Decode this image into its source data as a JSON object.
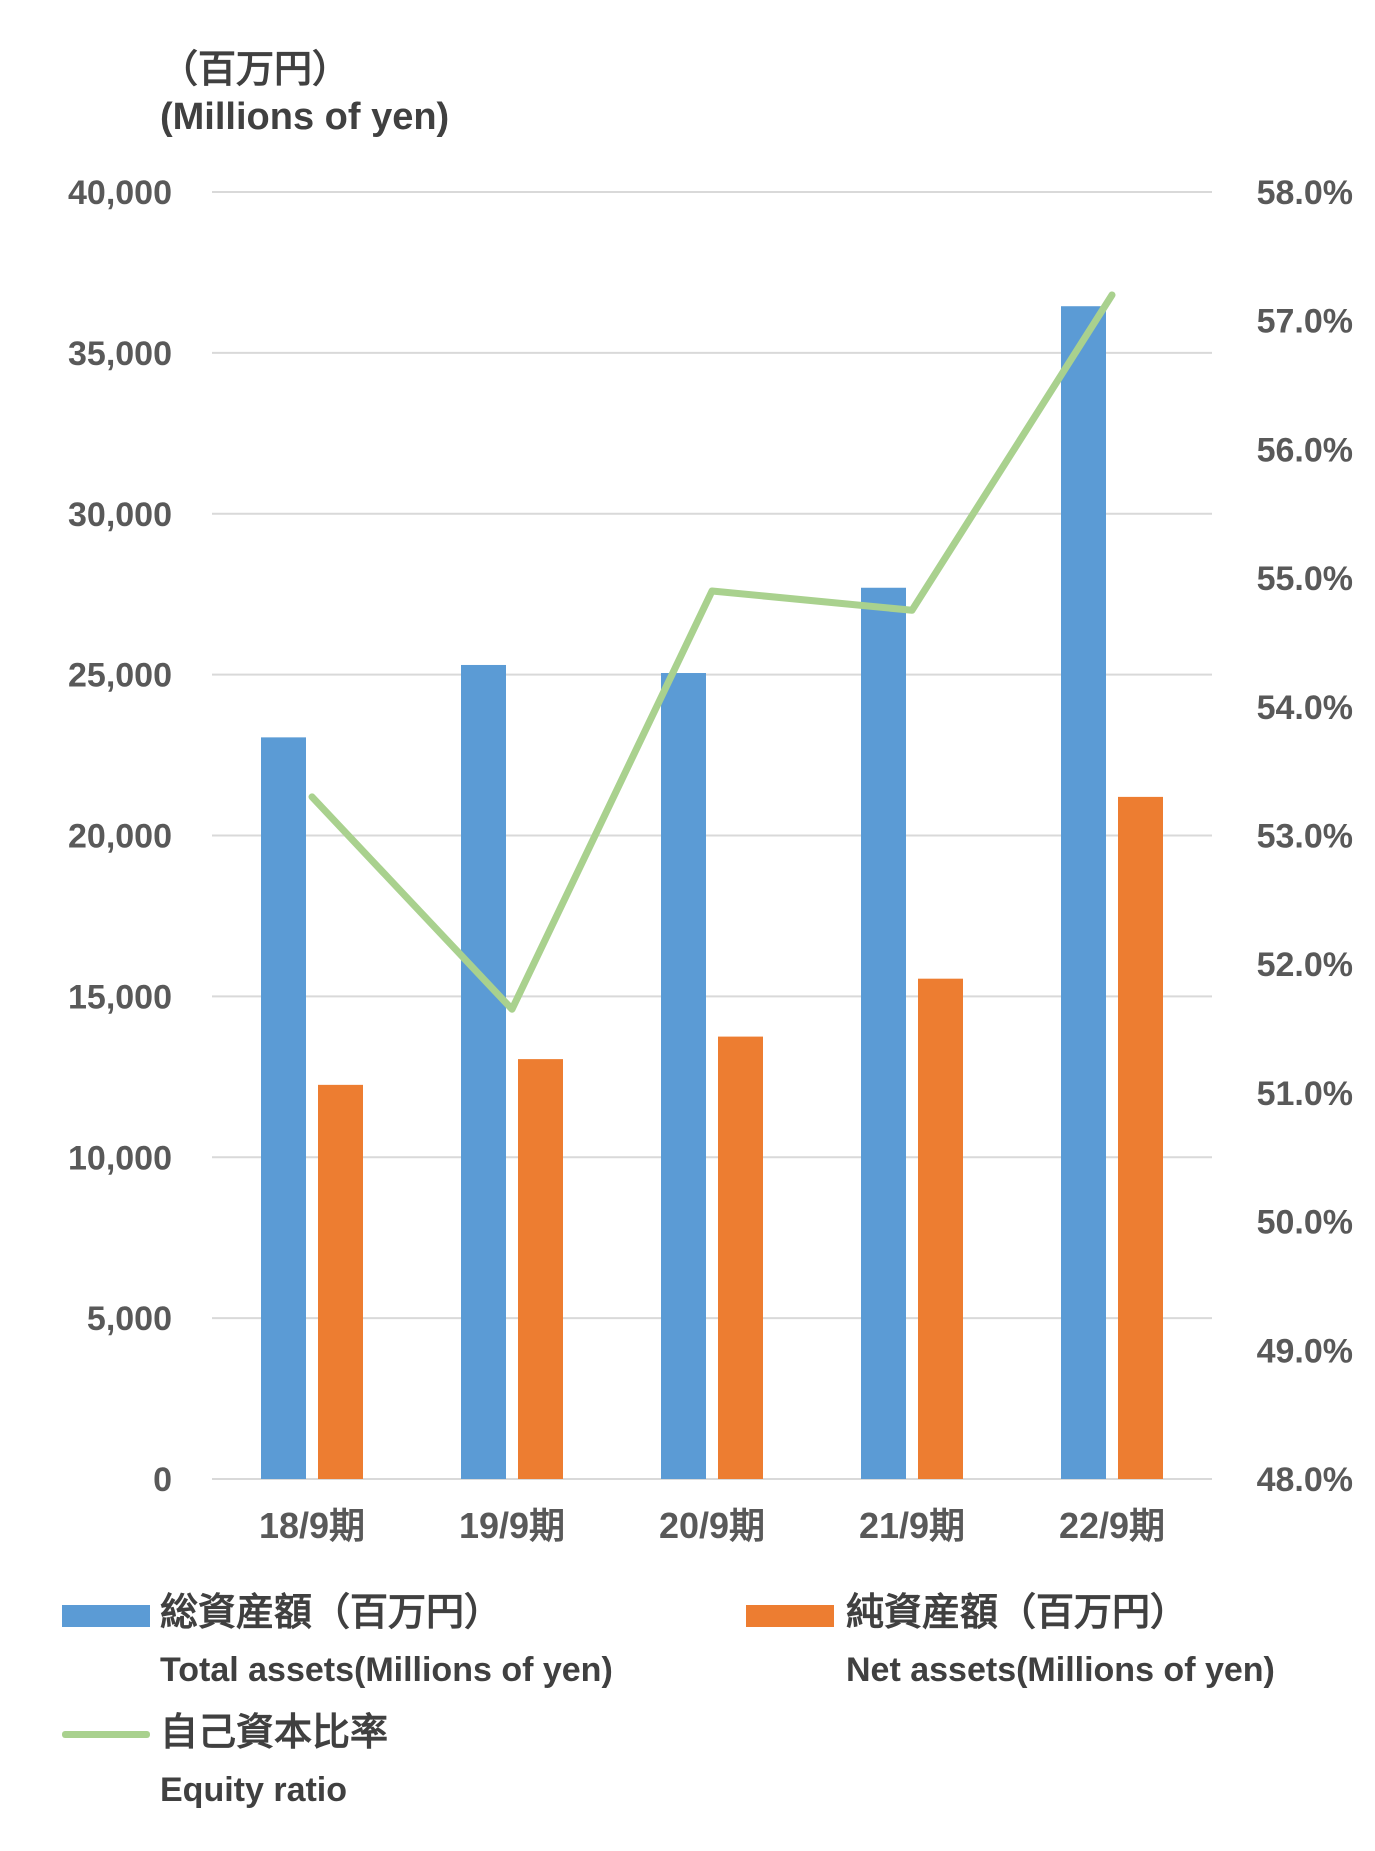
{
  "unit_label": {
    "jp": "（百万円）",
    "en": "(Millions of yen)"
  },
  "legend": {
    "total_assets": {
      "jp": "総資産額（百万円）",
      "en": "Total assets(Millions of yen)",
      "color": "#5B9BD5"
    },
    "net_assets": {
      "jp": "純資産額（百万円）",
      "en": "Net assets(Millions of yen)",
      "color": "#ED7D31"
    },
    "equity_ratio": {
      "jp": "自己資本比率",
      "en": "Equity ratio",
      "color": "#A9D18E"
    }
  },
  "chart_data": {
    "type": "bar",
    "categories": [
      "18/9期",
      "19/9期",
      "20/9期",
      "21/9期",
      "22/9期"
    ],
    "series": [
      {
        "name": "総資産額（百万円） Total assets(Millions of yen)",
        "type": "bar",
        "axis": "left",
        "color": "#5B9BD5",
        "values": [
          23050,
          25300,
          25050,
          27700,
          36450
        ]
      },
      {
        "name": "純資産額（百万円） Net assets(Millions of yen)",
        "type": "bar",
        "axis": "left",
        "color": "#ED7D31",
        "values": [
          12250,
          13050,
          13750,
          15550,
          21200
        ]
      },
      {
        "name": "自己資本比率 Equity ratio",
        "type": "line",
        "axis": "right",
        "color": "#A9D18E",
        "values": [
          53.3,
          51.65,
          54.9,
          54.75,
          57.2
        ]
      }
    ],
    "left_axis": {
      "min": 0,
      "max": 40000,
      "step": 5000,
      "tick_labels": [
        "0",
        "5,000",
        "10,000",
        "15,000",
        "20,000",
        "25,000",
        "30,000",
        "35,000",
        "40,000"
      ]
    },
    "right_axis": {
      "min": 48.0,
      "max": 58.0,
      "step": 1.0,
      "tick_labels": [
        "48.0%",
        "49.0%",
        "50.0%",
        "51.0%",
        "52.0%",
        "53.0%",
        "54.0%",
        "55.0%",
        "56.0%",
        "57.0%",
        "58.0%"
      ]
    },
    "grid": true,
    "legend_position": "bottom"
  }
}
